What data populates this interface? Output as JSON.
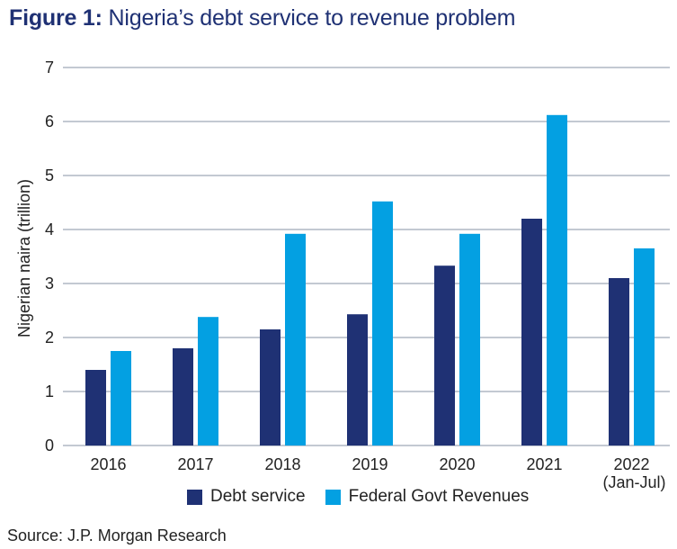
{
  "title": {
    "prefix": "Figure 1:",
    "text": " Nigeria’s debt service to revenue problem"
  },
  "source": "Source:  J.P. Morgan Research",
  "colors": {
    "title": "#1f3174",
    "debt_service": "#1f3174",
    "revenues": "#03a0e2",
    "grid": "#c3c9d2"
  },
  "chart_data": {
    "type": "bar",
    "title": "Figure 1: Nigeria’s debt service to revenue problem",
    "xlabel": "",
    "ylabel": "Nigerian naira (trillion)",
    "ylim": [
      0,
      7
    ],
    "yticks": [
      "0",
      "1",
      "2",
      "3",
      "4",
      "5",
      "6",
      "7"
    ],
    "grid": true,
    "legend_position": "bottom-center",
    "categories": [
      "2016",
      "2017",
      "2018",
      "2019",
      "2020",
      "2021",
      "2022"
    ],
    "category_sublabels": [
      "",
      "",
      "",
      "",
      "",
      "",
      "(Jan-Jul)"
    ],
    "series": [
      {
        "name": "Debt service",
        "values": [
          1.4,
          1.8,
          2.15,
          2.43,
          3.33,
          4.2,
          3.1
        ]
      },
      {
        "name": "Federal Govt Revenues",
        "values": [
          1.75,
          2.38,
          3.92,
          4.52,
          3.92,
          6.12,
          3.65
        ]
      }
    ]
  }
}
